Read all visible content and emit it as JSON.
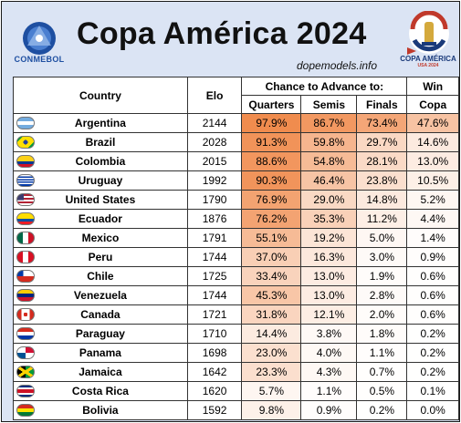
{
  "header": {
    "title": "Copa América 2024",
    "source": "dopemodels.info",
    "left_logo_label": "CONMEBOL",
    "right_logo_label": "COPA AMÉRICA",
    "right_logo_sub": "USA 2024"
  },
  "table": {
    "col_country": "Country",
    "col_elo": "Elo",
    "group_header": "Chance to Advance to:",
    "col_quarters": "Quarters",
    "col_semis": "Semis",
    "col_finals": "Finals",
    "col_win_line1": "Win",
    "col_win_line2": "Copa",
    "rows": [
      {
        "country": "Argentina",
        "elo": "2144",
        "q": "97.9%",
        "s": "86.7%",
        "f": "73.4%",
        "w": "47.6%",
        "qv": 97.9,
        "sv": 86.7,
        "fv": 73.4,
        "wv": 47.6,
        "flag": "argentina"
      },
      {
        "country": "Brazil",
        "elo": "2028",
        "q": "91.3%",
        "s": "59.8%",
        "f": "29.7%",
        "w": "14.6%",
        "qv": 91.3,
        "sv": 59.8,
        "fv": 29.7,
        "wv": 14.6,
        "flag": "brazil"
      },
      {
        "country": "Colombia",
        "elo": "2015",
        "q": "88.6%",
        "s": "54.8%",
        "f": "28.1%",
        "w": "13.0%",
        "qv": 88.6,
        "sv": 54.8,
        "fv": 28.1,
        "wv": 13.0,
        "flag": "colombia"
      },
      {
        "country": "Uruguay",
        "elo": "1992",
        "q": "90.3%",
        "s": "46.4%",
        "f": "23.8%",
        "w": "10.5%",
        "qv": 90.3,
        "sv": 46.4,
        "fv": 23.8,
        "wv": 10.5,
        "flag": "uruguay"
      },
      {
        "country": "United States",
        "elo": "1790",
        "q": "76.9%",
        "s": "29.0%",
        "f": "14.8%",
        "w": "5.2%",
        "qv": 76.9,
        "sv": 29.0,
        "fv": 14.8,
        "wv": 5.2,
        "flag": "usa"
      },
      {
        "country": "Ecuador",
        "elo": "1876",
        "q": "76.2%",
        "s": "35.3%",
        "f": "11.2%",
        "w": "4.4%",
        "qv": 76.2,
        "sv": 35.3,
        "fv": 11.2,
        "wv": 4.4,
        "flag": "ecuador"
      },
      {
        "country": "Mexico",
        "elo": "1791",
        "q": "55.1%",
        "s": "19.2%",
        "f": "5.0%",
        "w": "1.4%",
        "qv": 55.1,
        "sv": 19.2,
        "fv": 5.0,
        "wv": 1.4,
        "flag": "mexico"
      },
      {
        "country": "Peru",
        "elo": "1744",
        "q": "37.0%",
        "s": "16.3%",
        "f": "3.0%",
        "w": "0.9%",
        "qv": 37.0,
        "sv": 16.3,
        "fv": 3.0,
        "wv": 0.9,
        "flag": "peru"
      },
      {
        "country": "Chile",
        "elo": "1725",
        "q": "33.4%",
        "s": "13.0%",
        "f": "1.9%",
        "w": "0.6%",
        "qv": 33.4,
        "sv": 13.0,
        "fv": 1.9,
        "wv": 0.6,
        "flag": "chile"
      },
      {
        "country": "Venezuela",
        "elo": "1744",
        "q": "45.3%",
        "s": "13.0%",
        "f": "2.8%",
        "w": "0.6%",
        "qv": 45.3,
        "sv": 13.0,
        "fv": 2.8,
        "wv": 0.6,
        "flag": "venezuela"
      },
      {
        "country": "Canada",
        "elo": "1721",
        "q": "31.8%",
        "s": "12.1%",
        "f": "2.0%",
        "w": "0.6%",
        "qv": 31.8,
        "sv": 12.1,
        "fv": 2.0,
        "wv": 0.6,
        "flag": "canada"
      },
      {
        "country": "Paraguay",
        "elo": "1710",
        "q": "14.4%",
        "s": "3.8%",
        "f": "1.8%",
        "w": "0.2%",
        "qv": 14.4,
        "sv": 3.8,
        "fv": 1.8,
        "wv": 0.2,
        "flag": "paraguay"
      },
      {
        "country": "Panama",
        "elo": "1698",
        "q": "23.0%",
        "s": "4.0%",
        "f": "1.1%",
        "w": "0.2%",
        "qv": 23.0,
        "sv": 4.0,
        "fv": 1.1,
        "wv": 0.2,
        "flag": "panama"
      },
      {
        "country": "Jamaica",
        "elo": "1642",
        "q": "23.3%",
        "s": "4.3%",
        "f": "0.7%",
        "w": "0.2%",
        "qv": 23.3,
        "sv": 4.3,
        "fv": 0.7,
        "wv": 0.2,
        "flag": "jamaica"
      },
      {
        "country": "Costa Rica",
        "elo": "1620",
        "q": "5.7%",
        "s": "1.1%",
        "f": "0.5%",
        "w": "0.1%",
        "qv": 5.7,
        "sv": 1.1,
        "fv": 0.5,
        "wv": 0.1,
        "flag": "costarica"
      },
      {
        "country": "Bolivia",
        "elo": "1592",
        "q": "9.8%",
        "s": "0.9%",
        "f": "0.2%",
        "w": "0.0%",
        "qv": 9.8,
        "sv": 0.9,
        "fv": 0.2,
        "wv": 0.0,
        "flag": "bolivia"
      }
    ]
  },
  "colors": {
    "background": "#dbe4f4",
    "heat_high": "#f08a4b",
    "heat_low": "#ffffff"
  }
}
